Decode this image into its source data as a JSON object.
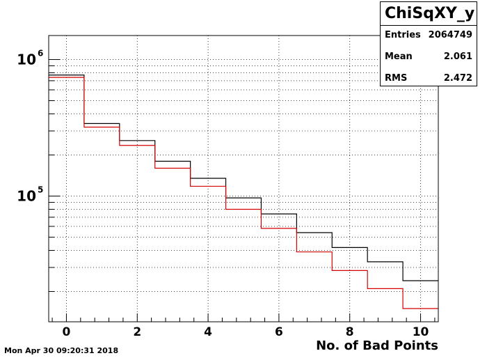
{
  "chart_data": {
    "type": "line",
    "title": "",
    "xlabel": "No. of Bad Points",
    "ylabel": "",
    "xlim": [
      -0.5,
      10.5
    ],
    "ylim": [
      12000,
      1500000
    ],
    "yscale": "log",
    "grid": true,
    "x": [
      0,
      1,
      2,
      3,
      4,
      5,
      6,
      7,
      8,
      9,
      10
    ],
    "xticks": [
      "0",
      "2",
      "4",
      "6",
      "8",
      "10"
    ],
    "yticks": [
      {
        "base": "10",
        "exp": "5",
        "value": 100000
      },
      {
        "base": "10",
        "exp": "6",
        "value": 1000000
      }
    ],
    "series": [
      {
        "color": "#000000",
        "values": [
          770000,
          340000,
          255000,
          180000,
          135000,
          97000,
          74000,
          54000,
          42000,
          33000,
          24000
        ]
      },
      {
        "color": "#d40000",
        "values": [
          740000,
          320000,
          235000,
          160000,
          118000,
          80000,
          58000,
          39000,
          28500,
          21000,
          15000
        ]
      }
    ]
  },
  "stats": {
    "title": "ChiSqXY_y",
    "entries_label": "Entries",
    "entries_value": "2064749",
    "mean_label": "Mean",
    "mean_value": "2.061",
    "rms_label": "RMS",
    "rms_value": "2.472"
  },
  "footer": {
    "timestamp": "Mon Apr 30 09:20:31 2018"
  }
}
